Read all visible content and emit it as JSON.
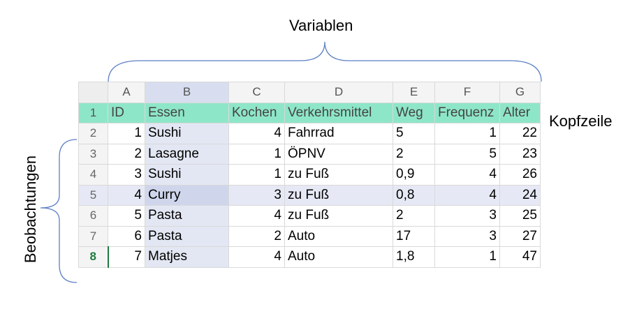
{
  "annotations": {
    "variables_label": "Variablen",
    "header_row_label": "Kopfzeile",
    "observations_label": "Beobachtungen"
  },
  "sheet": {
    "columns": [
      "A",
      "B",
      "C",
      "D",
      "E",
      "F",
      "G"
    ],
    "row_numbers": [
      "1",
      "2",
      "3",
      "4",
      "5",
      "6",
      "7",
      "8"
    ],
    "header": [
      "ID",
      "Essen",
      "Kochen",
      "Verkehrsmittel",
      "Weg",
      "Frequenz",
      "Alter"
    ],
    "rows": [
      [
        "1",
        "Sushi",
        "4",
        "Fahrrad",
        "5",
        "1",
        "22"
      ],
      [
        "2",
        "Lasagne",
        "1",
        "ÖPNV",
        "2",
        "5",
        "23"
      ],
      [
        "3",
        "Sushi",
        "1",
        "zu Fuß",
        "0,9",
        "4",
        "26"
      ],
      [
        "4",
        "Curry",
        "3",
        "zu Fuß",
        "0,8",
        "4",
        "24"
      ],
      [
        "5",
        "Pasta",
        "4",
        "zu Fuß",
        "2",
        "3",
        "25"
      ],
      [
        "6",
        "Pasta",
        "2",
        "Auto",
        "17",
        "3",
        "27"
      ],
      [
        "7",
        "Matjes",
        "4",
        "Auto",
        "1,8",
        "1",
        "47"
      ]
    ],
    "header_row_color": "#8ee6c9",
    "selected_column": "B",
    "highlighted_data_row": 4,
    "active_row_number": "8"
  }
}
